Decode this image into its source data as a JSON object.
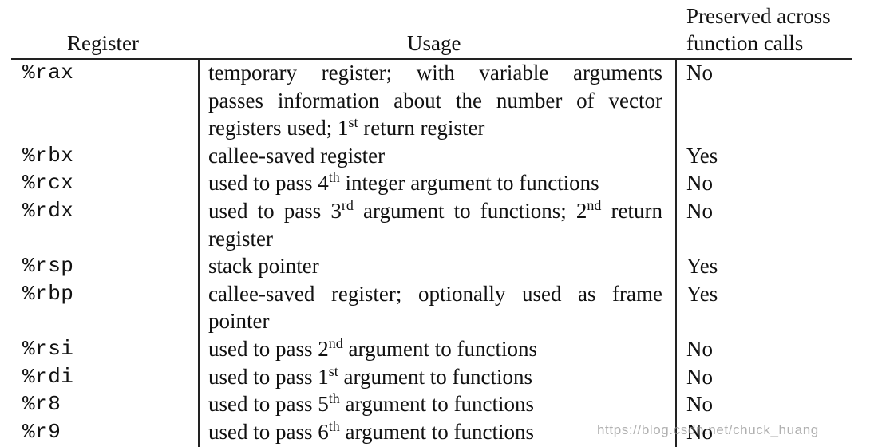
{
  "table": {
    "headers": {
      "register": "Register",
      "usage": "Usage",
      "preserved_line1": "Preserved across",
      "preserved_line2": "function calls"
    },
    "rows": [
      {
        "register": "%rax",
        "usage_lines": [
          [
            {
              "t": "temporary register; with variable arguments"
            }
          ],
          [
            {
              "t": "passes information about the number of vector"
            }
          ],
          [
            {
              "t": "registers used; 1"
            },
            {
              "sup": "st"
            },
            {
              "t": " return register"
            }
          ]
        ],
        "preserved": "No"
      },
      {
        "register": "%rbx",
        "usage_lines": [
          [
            {
              "t": "callee-saved register"
            }
          ]
        ],
        "preserved": "Yes"
      },
      {
        "register": "%rcx",
        "usage_lines": [
          [
            {
              "t": "used to pass 4"
            },
            {
              "sup": "th"
            },
            {
              "t": " integer argument to functions"
            }
          ]
        ],
        "preserved": "No"
      },
      {
        "register": "%rdx",
        "usage_lines": [
          [
            {
              "t": "used to pass 3"
            },
            {
              "sup": "rd"
            },
            {
              "t": " argument to functions; 2"
            },
            {
              "sup": "nd"
            },
            {
              "t": " return"
            }
          ],
          [
            {
              "t": "register"
            }
          ]
        ],
        "preserved": "No"
      },
      {
        "register": "%rsp",
        "usage_lines": [
          [
            {
              "t": "stack pointer"
            }
          ]
        ],
        "preserved": "Yes"
      },
      {
        "register": "%rbp",
        "usage_lines": [
          [
            {
              "t": "callee-saved register; optionally used as frame"
            }
          ],
          [
            {
              "t": "pointer"
            }
          ]
        ],
        "preserved": "Yes"
      },
      {
        "register": "%rsi",
        "usage_lines": [
          [
            {
              "t": "used to pass 2"
            },
            {
              "sup": "nd"
            },
            {
              "t": " argument to functions"
            }
          ]
        ],
        "preserved": "No"
      },
      {
        "register": "%rdi",
        "usage_lines": [
          [
            {
              "t": "used to pass 1"
            },
            {
              "sup": "st"
            },
            {
              "t": " argument to functions"
            }
          ]
        ],
        "preserved": "No"
      },
      {
        "register": "%r8",
        "usage_lines": [
          [
            {
              "t": "used to pass 5"
            },
            {
              "sup": "th"
            },
            {
              "t": " argument to functions"
            }
          ]
        ],
        "preserved": "No"
      },
      {
        "register": "%r9",
        "usage_lines": [
          [
            {
              "t": "used to pass 6"
            },
            {
              "sup": "th"
            },
            {
              "t": " argument to functions"
            }
          ]
        ],
        "preserved": "No"
      }
    ]
  },
  "watermark": "https://blog.csdn.net/chuck_huang"
}
